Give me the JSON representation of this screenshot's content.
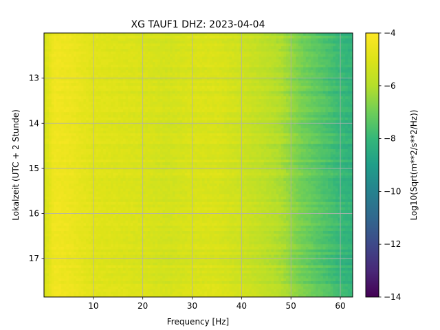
{
  "chart_data": {
    "type": "heatmap",
    "title": "XG TAUF1  DHZ: 2023-04-04",
    "xlabel": "Frequency [Hz]",
    "ylabel": "Lokalzeit (UTC + 2 Stunde)",
    "xlim": [
      0,
      62.5
    ],
    "ylim": [
      17.85,
      12.0
    ],
    "y_inverted": true,
    "x_ticks": [
      10,
      20,
      30,
      40,
      50,
      60
    ],
    "y_ticks": [
      13,
      14,
      15,
      16,
      17
    ],
    "grid": true,
    "colormap": "viridis",
    "colorbar": {
      "label": "Log10(Sqrt(m**2/s**2/Hz))",
      "range": [
        -14,
        -4
      ],
      "ticks": [
        -4,
        -6,
        -8,
        -10,
        -12,
        -14
      ],
      "tick_labels": [
        "−4",
        "−6",
        "−8",
        "−10",
        "−12",
        "−14"
      ]
    },
    "frequency_profile": {
      "frequency_hz": [
        0,
        2,
        5,
        10,
        20,
        25,
        30,
        35,
        40,
        45,
        48,
        50,
        52,
        55,
        58,
        60,
        62.5
      ],
      "log10_amplitude": [
        -5.3,
        -4.4,
        -4.5,
        -4.9,
        -5.1,
        -5.3,
        -5.1,
        -5.1,
        -5.4,
        -5.8,
        -6.1,
        -6.5,
        -6.9,
        -7.3,
        -7.7,
        -8.0,
        -8.2
      ]
    }
  },
  "x_tick_labels": [
    "10",
    "20",
    "30",
    "40",
    "50",
    "60"
  ],
  "y_tick_labels": [
    "13",
    "14",
    "15",
    "16",
    "17"
  ]
}
